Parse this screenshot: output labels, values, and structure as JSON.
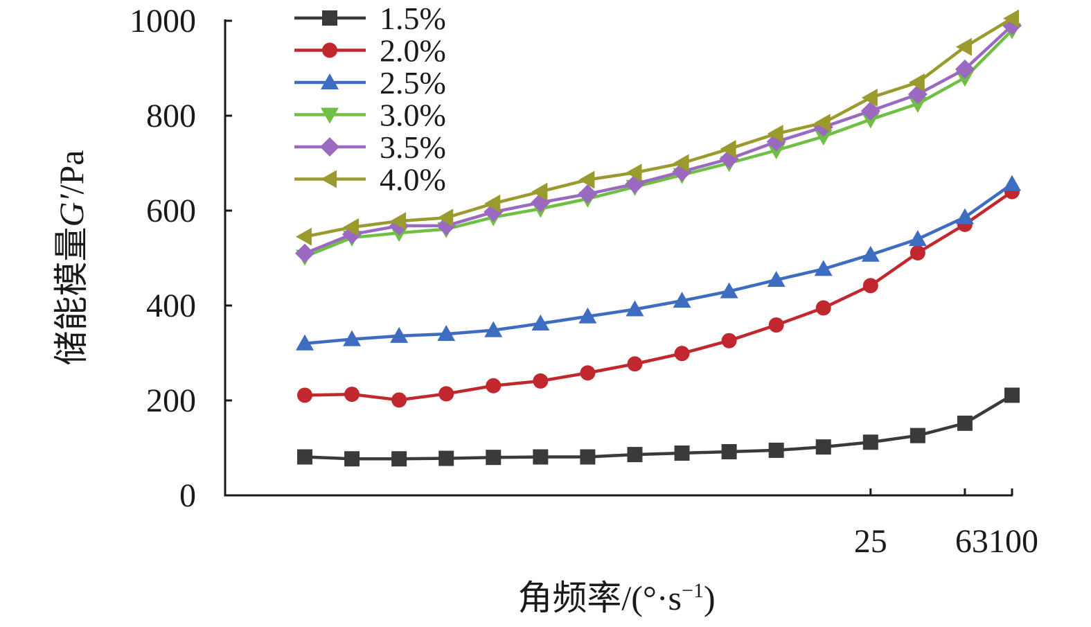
{
  "chart_data": {
    "type": "line",
    "title": "",
    "xlabel": "角频率/(°·s⁻¹)",
    "xlabel_main": "角频率/(°·s",
    "xlabel_sup": "−1",
    "xlabel_tail": ")",
    "ylabel": "储能模量G′/Pa",
    "ylabel_prefix": "储能模量",
    "ylabel_var": "G′",
    "ylabel_suffix": "/Pa",
    "ylim": [
      0,
      1000
    ],
    "yticks": [
      "0",
      "200",
      "400",
      "600",
      "800",
      "1000"
    ],
    "xtick_labels": [
      {
        "label": "25",
        "index": 12
      },
      {
        "label": "63",
        "index": 14
      },
      {
        "label": "100",
        "index": 15
      }
    ],
    "point_count": 16,
    "legend_position": "top-left",
    "grid": false,
    "series": [
      {
        "name": "1.5%",
        "color": "#3a3a3a",
        "marker": "square",
        "values": [
          81,
          77,
          77,
          78,
          80,
          81,
          81,
          86,
          89,
          92,
          95,
          102,
          112,
          126,
          152,
          211
        ]
      },
      {
        "name": "2.0%",
        "color": "#c0282d",
        "marker": "circle",
        "values": [
          211,
          213,
          201,
          214,
          231,
          241,
          258,
          277,
          299,
          326,
          359,
          395,
          442,
          511,
          571,
          640
        ]
      },
      {
        "name": "2.5%",
        "color": "#3d6cc1",
        "marker": "triangle-up",
        "values": [
          320,
          329,
          336,
          340,
          348,
          362,
          377,
          392,
          410,
          430,
          454,
          477,
          507,
          540,
          586,
          656
        ]
      },
      {
        "name": "3.0%",
        "color": "#6fbf44",
        "marker": "triangle-down",
        "values": [
          503,
          543,
          553,
          561,
          586,
          604,
          625,
          650,
          675,
          700,
          727,
          756,
          792,
          825,
          880,
          980
        ]
      },
      {
        "name": "3.5%",
        "color": "#9a6ac0",
        "marker": "diamond",
        "values": [
          510,
          550,
          568,
          568,
          597,
          617,
          635,
          656,
          682,
          709,
          745,
          776,
          810,
          845,
          898,
          990
        ]
      },
      {
        "name": "4.0%",
        "color": "#9a9a2e",
        "marker": "triangle-left",
        "values": [
          545,
          565,
          578,
          585,
          615,
          640,
          665,
          680,
          700,
          730,
          762,
          785,
          838,
          870,
          945,
          1005
        ]
      }
    ]
  }
}
